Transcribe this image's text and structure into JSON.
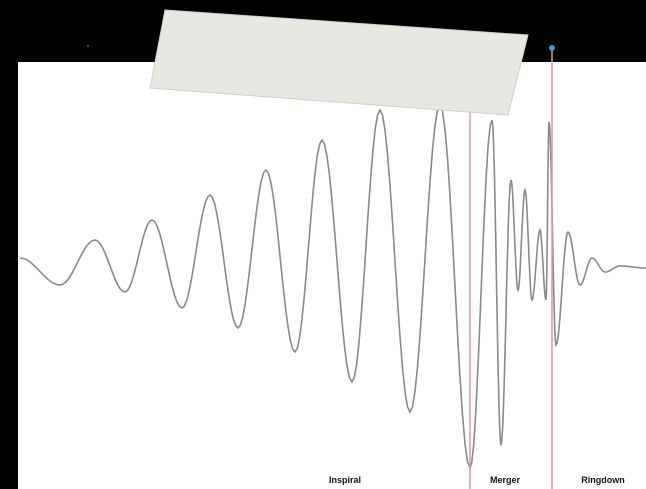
{
  "phases": [
    "Inspiral",
    "Merger",
    "Ringdown"
  ]
}
